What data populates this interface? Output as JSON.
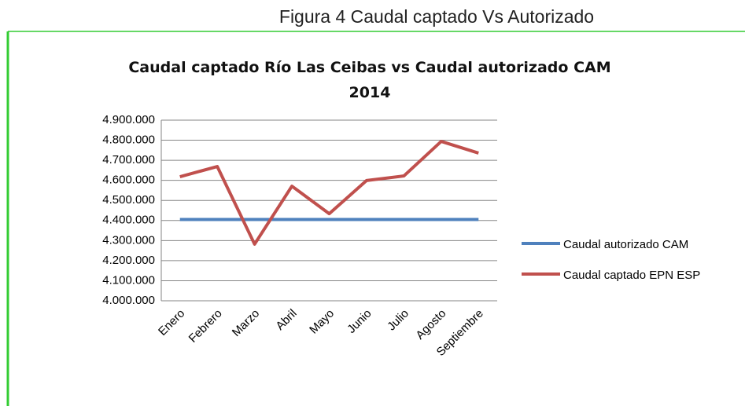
{
  "caption": "Figura 4 Caudal captado Vs Autorizado",
  "chart_data": {
    "type": "line",
    "title": "Caudal captado Río Las Ceibas vs Caudal autorizado CAM 2014",
    "categories": [
      "Enero",
      "Febrero",
      "Marzo",
      "Abril",
      "Mayo",
      "Junio",
      "Julio",
      "Agosto",
      "Septiembre"
    ],
    "series": [
      {
        "name": "Caudal autorizado CAM",
        "color": "#4f81bd",
        "values": [
          4405000,
          4405000,
          4405000,
          4405000,
          4405000,
          4405000,
          4405000,
          4405000,
          4405000
        ]
      },
      {
        "name": "Caudal captado EPN ESP",
        "color": "#c0504d",
        "values": [
          4618000,
          4669000,
          4282000,
          4571000,
          4434000,
          4599000,
          4622000,
          4794000,
          4736000
        ]
      }
    ],
    "ylim": [
      4000000,
      4900000
    ],
    "yticks": [
      {
        "value": 4000000,
        "label": "4.000.000"
      },
      {
        "value": 4100000,
        "label": "4.100.000"
      },
      {
        "value": 4200000,
        "label": "4.200.000"
      },
      {
        "value": 4300000,
        "label": "4.300.000"
      },
      {
        "value": 4400000,
        "label": "4.400.000"
      },
      {
        "value": 4500000,
        "label": "4.500.000"
      },
      {
        "value": 4600000,
        "label": "4.600.000"
      },
      {
        "value": 4700000,
        "label": "4.700.000"
      },
      {
        "value": 4800000,
        "label": "4.800.000"
      },
      {
        "value": 4900000,
        "label": "4.900.000"
      }
    ],
    "grid": true,
    "legend": "right"
  }
}
